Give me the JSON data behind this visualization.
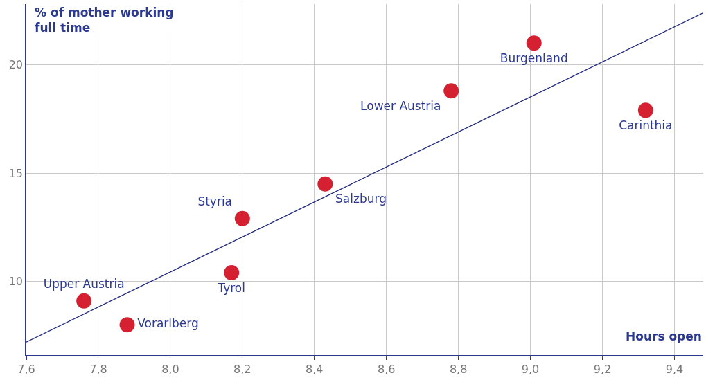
{
  "chart_data": {
    "type": "scatter",
    "xlabel": "Hours open",
    "ylabel": "% of mother working full time",
    "xlim": [
      7.6,
      9.48
    ],
    "ylim": [
      6.6,
      22.8
    ],
    "xticks": [
      {
        "value": 7.6,
        "label": "7,6"
      },
      {
        "value": 7.8,
        "label": "7,8"
      },
      {
        "value": 8.0,
        "label": "8,0"
      },
      {
        "value": 8.2,
        "label": "8,2"
      },
      {
        "value": 8.4,
        "label": "8,4"
      },
      {
        "value": 8.6,
        "label": "8,6"
      },
      {
        "value": 8.8,
        "label": "8,8"
      },
      {
        "value": 9.0,
        "label": "9,0"
      },
      {
        "value": 9.2,
        "label": "9,2"
      },
      {
        "value": 9.4,
        "label": "9,4"
      }
    ],
    "yticks": [
      10,
      15,
      20
    ],
    "grid": true,
    "legend": false,
    "marker": "circle",
    "series": [
      {
        "name": "Upper Austria",
        "color": "#d42030",
        "x": [
          7.76
        ],
        "values": [
          9.1
        ]
      },
      {
        "name": "Vorarlberg",
        "color": "#d42030",
        "x": [
          7.88
        ],
        "values": [
          8.0
        ]
      },
      {
        "name": "Tyrol",
        "color": "#d42030",
        "x": [
          8.17
        ],
        "values": [
          10.4
        ]
      },
      {
        "name": "Styria",
        "color": "#d42030",
        "x": [
          8.2
        ],
        "values": [
          12.9
        ]
      },
      {
        "name": "Salzburg",
        "color": "#d42030",
        "x": [
          8.43
        ],
        "values": [
          14.5
        ]
      },
      {
        "name": "Lower Austria",
        "color": "#d42030",
        "x": [
          8.78
        ],
        "values": [
          18.8
        ]
      },
      {
        "name": "Burgenland",
        "color": "#d42030",
        "x": [
          9.01
        ],
        "values": [
          21.0
        ]
      },
      {
        "name": "Carinthia",
        "color": "#d42030",
        "x": [
          9.32
        ],
        "values": [
          17.9
        ]
      },
      {
        "type": "line",
        "color": "#1f2a7a",
        "x": [
          7.6,
          9.48
        ],
        "values": [
          7.2,
          22.4
        ],
        "marker": "none"
      }
    ]
  }
}
